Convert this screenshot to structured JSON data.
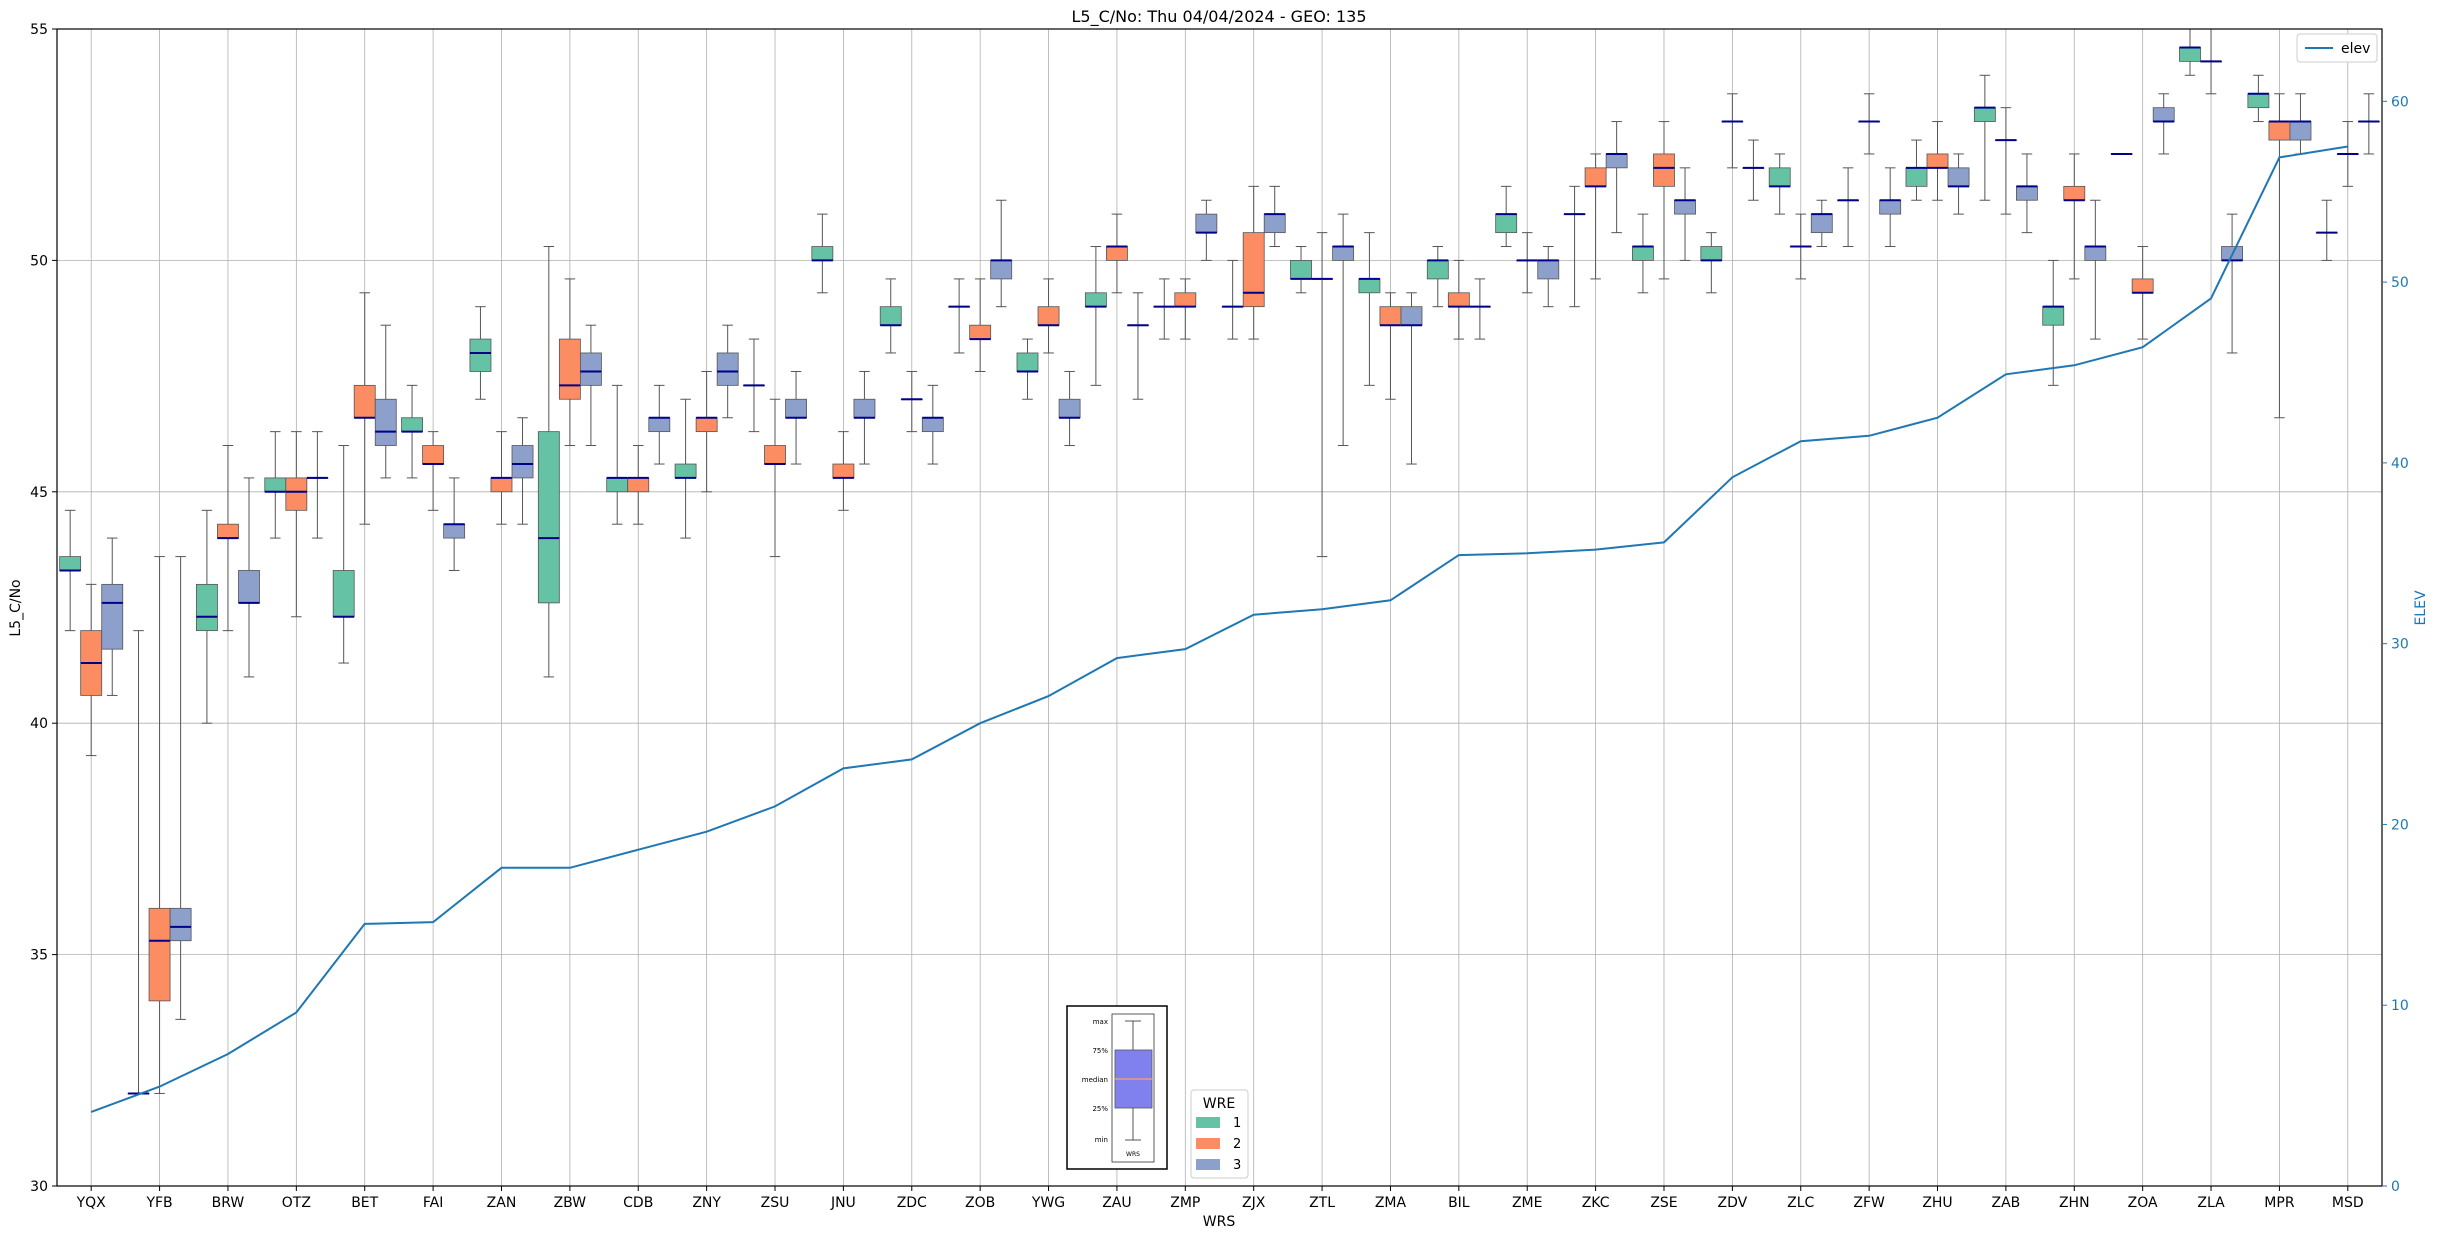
{
  "chart_data": {
    "type": "box",
    "title": "L5_C/No: Thu 04/04/2024 - GEO: 135",
    "xlabel": "WRS",
    "ylabel": "L5_C/No",
    "ylabel_right": "ELEV",
    "ylim": [
      30,
      55
    ],
    "ylim_right": [
      0,
      64
    ],
    "yticks": [
      30,
      35,
      40,
      45,
      50,
      55
    ],
    "yticks_right": [
      0,
      10,
      20,
      30,
      40,
      50,
      60
    ],
    "grid": true,
    "categories": [
      "YQX",
      "YFB",
      "BRW",
      "OTZ",
      "BET",
      "FAI",
      "ZAN",
      "ZBW",
      "CDB",
      "ZNY",
      "ZSU",
      "JNU",
      "ZDC",
      "ZOB",
      "YWG",
      "ZAU",
      "ZMP",
      "ZJX",
      "ZTL",
      "ZMA",
      "BIL",
      "ZME",
      "ZKC",
      "ZSE",
      "ZDV",
      "ZLC",
      "ZFW",
      "ZHU",
      "ZAB",
      "ZHN",
      "ZOA",
      "ZLA",
      "MPR",
      "MSD"
    ],
    "colors": {
      "1": "#66c2a5",
      "2": "#fc8d62",
      "3": "#8da0cb",
      "median": "#00008b",
      "whisker": "#555555",
      "elev": "#1f77b4",
      "right_axis": "#1f77b4"
    },
    "legend": {
      "title": "WRE",
      "placement": "bottom-center",
      "labels": [
        "1",
        "2",
        "3"
      ]
    },
    "elev_legend": {
      "label": "elev",
      "placement": "top-right"
    },
    "inset": {
      "labels": [
        "max",
        "75%",
        "median",
        "25%",
        "min"
      ],
      "xlabel": "WRS"
    },
    "elev": [
      4.1,
      5.5,
      7.3,
      9.6,
      14.5,
      14.6,
      17.6,
      17.6,
      18.6,
      19.6,
      21.0,
      23.1,
      23.6,
      25.6,
      27.1,
      29.2,
      29.7,
      31.6,
      31.9,
      32.4,
      34.9,
      35.0,
      35.2,
      35.6,
      39.2,
      41.2,
      41.5,
      42.5,
      44.9,
      45.4,
      46.4,
      49.1,
      56.9,
      57.5
    ],
    "boxes": [
      {
        "cat": "YQX",
        "wre": 1,
        "min": 42.0,
        "q1": 43.3,
        "median": 43.3,
        "q3": 43.6,
        "max": 44.6
      },
      {
        "cat": "YQX",
        "wre": 2,
        "min": 39.3,
        "q1": 40.6,
        "median": 41.3,
        "q3": 42.0,
        "max": 43.0
      },
      {
        "cat": "YQX",
        "wre": 3,
        "min": 40.6,
        "q1": 41.6,
        "median": 42.6,
        "q3": 43.0,
        "max": 44.0
      },
      {
        "cat": "YFB",
        "wre": 1,
        "min": 32.0,
        "q1": 32.0,
        "median": 32.0,
        "q3": 32.0,
        "max": 42.0
      },
      {
        "cat": "YFB",
        "wre": 2,
        "min": 32.0,
        "q1": 34.0,
        "median": 35.3,
        "q3": 36.0,
        "max": 43.6
      },
      {
        "cat": "YFB",
        "wre": 3,
        "min": 33.6,
        "q1": 35.3,
        "median": 35.6,
        "q3": 36.0,
        "max": 43.6
      },
      {
        "cat": "BRW",
        "wre": 1,
        "min": 40.0,
        "q1": 42.0,
        "median": 42.3,
        "q3": 43.0,
        "max": 44.6
      },
      {
        "cat": "BRW",
        "wre": 2,
        "min": 42.0,
        "q1": 44.0,
        "median": 44.0,
        "q3": 44.3,
        "max": 46.0
      },
      {
        "cat": "BRW",
        "wre": 3,
        "min": 41.0,
        "q1": 42.6,
        "median": 42.6,
        "q3": 43.3,
        "max": 45.3
      },
      {
        "cat": "OTZ",
        "wre": 1,
        "min": 44.0,
        "q1": 45.0,
        "median": 45.0,
        "q3": 45.3,
        "max": 46.3
      },
      {
        "cat": "OTZ",
        "wre": 2,
        "min": 42.3,
        "q1": 44.6,
        "median": 45.0,
        "q3": 45.3,
        "max": 46.3
      },
      {
        "cat": "OTZ",
        "wre": 3,
        "min": 44.0,
        "q1": 45.3,
        "median": 45.3,
        "q3": 45.3,
        "max": 46.3
      },
      {
        "cat": "BET",
        "wre": 1,
        "min": 41.3,
        "q1": 42.3,
        "median": 42.3,
        "q3": 43.3,
        "max": 46.0
      },
      {
        "cat": "BET",
        "wre": 2,
        "min": 44.3,
        "q1": 46.6,
        "median": 46.6,
        "q3": 47.3,
        "max": 49.3
      },
      {
        "cat": "BET",
        "wre": 3,
        "min": 45.3,
        "q1": 46.0,
        "median": 46.3,
        "q3": 47.0,
        "max": 48.6
      },
      {
        "cat": "FAI",
        "wre": 1,
        "min": 45.3,
        "q1": 46.3,
        "median": 46.3,
        "q3": 46.6,
        "max": 47.3
      },
      {
        "cat": "FAI",
        "wre": 2,
        "min": 44.6,
        "q1": 45.6,
        "median": 45.6,
        "q3": 46.0,
        "max": 46.3
      },
      {
        "cat": "FAI",
        "wre": 3,
        "min": 43.3,
        "q1": 44.0,
        "median": 44.3,
        "q3": 44.3,
        "max": 45.3
      },
      {
        "cat": "ZAN",
        "wre": 1,
        "min": 47.0,
        "q1": 47.6,
        "median": 48.0,
        "q3": 48.3,
        "max": 49.0
      },
      {
        "cat": "ZAN",
        "wre": 2,
        "min": 44.3,
        "q1": 45.0,
        "median": 45.3,
        "q3": 45.3,
        "max": 46.3
      },
      {
        "cat": "ZAN",
        "wre": 3,
        "min": 44.3,
        "q1": 45.3,
        "median": 45.6,
        "q3": 46.0,
        "max": 46.6
      },
      {
        "cat": "ZBW",
        "wre": 1,
        "min": 41.0,
        "q1": 42.6,
        "median": 44.0,
        "q3": 46.3,
        "max": 50.3
      },
      {
        "cat": "ZBW",
        "wre": 2,
        "min": 46.0,
        "q1": 47.0,
        "median": 47.3,
        "q3": 48.3,
        "max": 49.6
      },
      {
        "cat": "ZBW",
        "wre": 3,
        "min": 46.0,
        "q1": 47.3,
        "median": 47.6,
        "q3": 48.0,
        "max": 48.6
      },
      {
        "cat": "CDB",
        "wre": 1,
        "min": 44.3,
        "q1": 45.0,
        "median": 45.3,
        "q3": 45.3,
        "max": 47.3
      },
      {
        "cat": "CDB",
        "wre": 2,
        "min": 44.3,
        "q1": 45.0,
        "median": 45.3,
        "q3": 45.3,
        "max": 46.0
      },
      {
        "cat": "CDB",
        "wre": 3,
        "min": 45.6,
        "q1": 46.3,
        "median": 46.6,
        "q3": 46.6,
        "max": 47.3
      },
      {
        "cat": "ZNY",
        "wre": 1,
        "min": 44.0,
        "q1": 45.3,
        "median": 45.3,
        "q3": 45.6,
        "max": 47.0
      },
      {
        "cat": "ZNY",
        "wre": 2,
        "min": 45.0,
        "q1": 46.3,
        "median": 46.6,
        "q3": 46.6,
        "max": 47.6
      },
      {
        "cat": "ZNY",
        "wre": 3,
        "min": 46.6,
        "q1": 47.3,
        "median": 47.6,
        "q3": 48.0,
        "max": 48.6
      },
      {
        "cat": "ZSU",
        "wre": 1,
        "min": 46.3,
        "q1": 47.3,
        "median": 47.3,
        "q3": 47.3,
        "max": 48.3
      },
      {
        "cat": "ZSU",
        "wre": 2,
        "min": 43.6,
        "q1": 45.6,
        "median": 45.6,
        "q3": 46.0,
        "max": 47.0
      },
      {
        "cat": "ZSU",
        "wre": 3,
        "min": 45.6,
        "q1": 46.6,
        "median": 46.6,
        "q3": 47.0,
        "max": 47.6
      },
      {
        "cat": "JNU",
        "wre": 1,
        "min": 49.3,
        "q1": 50.0,
        "median": 50.0,
        "q3": 50.3,
        "max": 51.0
      },
      {
        "cat": "JNU",
        "wre": 2,
        "min": 44.6,
        "q1": 45.3,
        "median": 45.3,
        "q3": 45.6,
        "max": 46.3
      },
      {
        "cat": "JNU",
        "wre": 3,
        "min": 45.6,
        "q1": 46.6,
        "median": 46.6,
        "q3": 47.0,
        "max": 47.6
      },
      {
        "cat": "ZDC",
        "wre": 1,
        "min": 48.0,
        "q1": 48.6,
        "median": 48.6,
        "q3": 49.0,
        "max": 49.6
      },
      {
        "cat": "ZDC",
        "wre": 2,
        "min": 46.3,
        "q1": 47.0,
        "median": 47.0,
        "q3": 47.0,
        "max": 47.6
      },
      {
        "cat": "ZDC",
        "wre": 3,
        "min": 45.6,
        "q1": 46.3,
        "median": 46.6,
        "q3": 46.6,
        "max": 47.3
      },
      {
        "cat": "ZOB",
        "wre": 1,
        "min": 48.0,
        "q1": 49.0,
        "median": 49.0,
        "q3": 49.0,
        "max": 49.6
      },
      {
        "cat": "ZOB",
        "wre": 2,
        "min": 47.6,
        "q1": 48.3,
        "median": 48.3,
        "q3": 48.6,
        "max": 49.6
      },
      {
        "cat": "ZOB",
        "wre": 3,
        "min": 49.0,
        "q1": 49.6,
        "median": 50.0,
        "q3": 50.0,
        "max": 51.3
      },
      {
        "cat": "YWG",
        "wre": 1,
        "min": 47.0,
        "q1": 47.6,
        "median": 47.6,
        "q3": 48.0,
        "max": 48.3
      },
      {
        "cat": "YWG",
        "wre": 2,
        "min": 48.0,
        "q1": 48.6,
        "median": 48.6,
        "q3": 49.0,
        "max": 49.6
      },
      {
        "cat": "YWG",
        "wre": 3,
        "min": 46.0,
        "q1": 46.6,
        "median": 46.6,
        "q3": 47.0,
        "max": 47.6
      },
      {
        "cat": "ZAU",
        "wre": 1,
        "min": 47.3,
        "q1": 49.0,
        "median": 49.0,
        "q3": 49.3,
        "max": 50.3
      },
      {
        "cat": "ZAU",
        "wre": 2,
        "min": 49.3,
        "q1": 50.0,
        "median": 50.3,
        "q3": 50.3,
        "max": 51.0
      },
      {
        "cat": "ZAU",
        "wre": 3,
        "min": 47.0,
        "q1": 48.6,
        "median": 48.6,
        "q3": 48.6,
        "max": 49.3
      },
      {
        "cat": "ZMP",
        "wre": 1,
        "min": 48.3,
        "q1": 49.0,
        "median": 49.0,
        "q3": 49.0,
        "max": 49.6
      },
      {
        "cat": "ZMP",
        "wre": 2,
        "min": 48.3,
        "q1": 49.0,
        "median": 49.0,
        "q3": 49.3,
        "max": 49.6
      },
      {
        "cat": "ZMP",
        "wre": 3,
        "min": 50.0,
        "q1": 50.6,
        "median": 50.6,
        "q3": 51.0,
        "max": 51.3
      },
      {
        "cat": "ZJX",
        "wre": 1,
        "min": 48.3,
        "q1": 49.0,
        "median": 49.0,
        "q3": 49.0,
        "max": 50.0
      },
      {
        "cat": "ZJX",
        "wre": 2,
        "min": 48.3,
        "q1": 49.0,
        "median": 49.3,
        "q3": 50.6,
        "max": 51.6
      },
      {
        "cat": "ZJX",
        "wre": 3,
        "min": 50.3,
        "q1": 50.6,
        "median": 51.0,
        "q3": 51.0,
        "max": 51.6
      },
      {
        "cat": "ZTL",
        "wre": 1,
        "min": 49.3,
        "q1": 49.6,
        "median": 49.6,
        "q3": 50.0,
        "max": 50.3
      },
      {
        "cat": "ZTL",
        "wre": 2,
        "min": 43.6,
        "q1": 49.6,
        "median": 49.6,
        "q3": 49.6,
        "max": 50.6
      },
      {
        "cat": "ZTL",
        "wre": 3,
        "min": 46.0,
        "q1": 50.0,
        "median": 50.3,
        "q3": 50.3,
        "max": 51.0
      },
      {
        "cat": "ZMA",
        "wre": 1,
        "min": 47.3,
        "q1": 49.3,
        "median": 49.6,
        "q3": 49.6,
        "max": 50.6
      },
      {
        "cat": "ZMA",
        "wre": 2,
        "min": 47.0,
        "q1": 48.6,
        "median": 48.6,
        "q3": 49.0,
        "max": 49.3
      },
      {
        "cat": "ZMA",
        "wre": 3,
        "min": 45.6,
        "q1": 48.6,
        "median": 48.6,
        "q3": 49.0,
        "max": 49.3
      },
      {
        "cat": "BIL",
        "wre": 1,
        "min": 49.0,
        "q1": 49.6,
        "median": 50.0,
        "q3": 50.0,
        "max": 50.3
      },
      {
        "cat": "BIL",
        "wre": 2,
        "min": 48.3,
        "q1": 49.0,
        "median": 49.0,
        "q3": 49.3,
        "max": 50.0
      },
      {
        "cat": "BIL",
        "wre": 3,
        "min": 48.3,
        "q1": 49.0,
        "median": 49.0,
        "q3": 49.0,
        "max": 49.6
      },
      {
        "cat": "ZME",
        "wre": 1,
        "min": 50.3,
        "q1": 50.6,
        "median": 51.0,
        "q3": 51.0,
        "max": 51.6
      },
      {
        "cat": "ZME",
        "wre": 2,
        "min": 49.3,
        "q1": 50.0,
        "median": 50.0,
        "q3": 50.0,
        "max": 50.6
      },
      {
        "cat": "ZME",
        "wre": 3,
        "min": 49.0,
        "q1": 49.6,
        "median": 50.0,
        "q3": 50.0,
        "max": 50.3
      },
      {
        "cat": "ZKC",
        "wre": 1,
        "min": 49.0,
        "q1": 51.0,
        "median": 51.0,
        "q3": 51.0,
        "max": 51.6
      },
      {
        "cat": "ZKC",
        "wre": 2,
        "min": 49.6,
        "q1": 51.6,
        "median": 51.6,
        "q3": 52.0,
        "max": 52.3
      },
      {
        "cat": "ZKC",
        "wre": 3,
        "min": 50.6,
        "q1": 52.0,
        "median": 52.3,
        "q3": 52.3,
        "max": 53.0
      },
      {
        "cat": "ZSE",
        "wre": 1,
        "min": 49.3,
        "q1": 50.0,
        "median": 50.3,
        "q3": 50.3,
        "max": 51.0
      },
      {
        "cat": "ZSE",
        "wre": 2,
        "min": 49.6,
        "q1": 51.6,
        "median": 52.0,
        "q3": 52.3,
        "max": 53.0
      },
      {
        "cat": "ZSE",
        "wre": 3,
        "min": 50.0,
        "q1": 51.0,
        "median": 51.3,
        "q3": 51.3,
        "max": 52.0
      },
      {
        "cat": "ZDV",
        "wre": 1,
        "min": 49.3,
        "q1": 50.0,
        "median": 50.0,
        "q3": 50.3,
        "max": 50.6
      },
      {
        "cat": "ZDV",
        "wre": 2,
        "min": 52.0,
        "q1": 53.0,
        "median": 53.0,
        "q3": 53.0,
        "max": 53.6
      },
      {
        "cat": "ZDV",
        "wre": 3,
        "min": 51.3,
        "q1": 52.0,
        "median": 52.0,
        "q3": 52.0,
        "max": 52.6
      },
      {
        "cat": "ZLC",
        "wre": 1,
        "min": 51.0,
        "q1": 51.6,
        "median": 51.6,
        "q3": 52.0,
        "max": 52.3
      },
      {
        "cat": "ZLC",
        "wre": 2,
        "min": 49.6,
        "q1": 50.3,
        "median": 50.3,
        "q3": 50.3,
        "max": 51.0
      },
      {
        "cat": "ZLC",
        "wre": 3,
        "min": 50.3,
        "q1": 50.6,
        "median": 51.0,
        "q3": 51.0,
        "max": 51.3
      },
      {
        "cat": "ZFW",
        "wre": 1,
        "min": 50.3,
        "q1": 51.3,
        "median": 51.3,
        "q3": 51.3,
        "max": 52.0
      },
      {
        "cat": "ZFW",
        "wre": 2,
        "min": 52.3,
        "q1": 53.0,
        "median": 53.0,
        "q3": 53.0,
        "max": 53.6
      },
      {
        "cat": "ZFW",
        "wre": 3,
        "min": 50.3,
        "q1": 51.0,
        "median": 51.3,
        "q3": 51.3,
        "max": 52.0
      },
      {
        "cat": "ZHU",
        "wre": 1,
        "min": 51.3,
        "q1": 51.6,
        "median": 52.0,
        "q3": 52.0,
        "max": 52.6
      },
      {
        "cat": "ZHU",
        "wre": 2,
        "min": 51.3,
        "q1": 52.0,
        "median": 52.0,
        "q3": 52.3,
        "max": 53.0
      },
      {
        "cat": "ZHU",
        "wre": 3,
        "min": 51.0,
        "q1": 51.6,
        "median": 51.6,
        "q3": 52.0,
        "max": 52.3
      },
      {
        "cat": "ZAB",
        "wre": 1,
        "min": 51.3,
        "q1": 53.0,
        "median": 53.3,
        "q3": 53.3,
        "max": 54.0
      },
      {
        "cat": "ZAB",
        "wre": 2,
        "min": 51.0,
        "q1": 52.6,
        "median": 52.6,
        "q3": 52.6,
        "max": 53.3
      },
      {
        "cat": "ZAB",
        "wre": 3,
        "min": 50.6,
        "q1": 51.3,
        "median": 51.6,
        "q3": 51.6,
        "max": 52.3
      },
      {
        "cat": "ZHN",
        "wre": 1,
        "min": 47.3,
        "q1": 48.6,
        "median": 49.0,
        "q3": 49.0,
        "max": 50.0
      },
      {
        "cat": "ZHN",
        "wre": 2,
        "min": 49.6,
        "q1": 51.3,
        "median": 51.3,
        "q3": 51.6,
        "max": 52.3
      },
      {
        "cat": "ZHN",
        "wre": 3,
        "min": 48.3,
        "q1": 50.0,
        "median": 50.3,
        "q3": 50.3,
        "max": 51.3
      },
      {
        "cat": "ZOA",
        "wre": 1,
        "min": 52.3,
        "q1": 52.3,
        "median": 52.3,
        "q3": 52.3,
        "max": 52.3
      },
      {
        "cat": "ZOA",
        "wre": 2,
        "min": 48.3,
        "q1": 49.3,
        "median": 49.3,
        "q3": 49.6,
        "max": 50.3
      },
      {
        "cat": "ZOA",
        "wre": 3,
        "min": 52.3,
        "q1": 53.0,
        "median": 53.0,
        "q3": 53.3,
        "max": 53.6
      },
      {
        "cat": "ZLA",
        "wre": 1,
        "min": 54.0,
        "q1": 54.3,
        "median": 54.6,
        "q3": 54.6,
        "max": 55.0
      },
      {
        "cat": "ZLA",
        "wre": 2,
        "min": 53.6,
        "q1": 54.3,
        "median": 54.3,
        "q3": 54.3,
        "max": 55.0
      },
      {
        "cat": "ZLA",
        "wre": 3,
        "min": 48.0,
        "q1": 50.0,
        "median": 50.0,
        "q3": 50.3,
        "max": 51.0
      },
      {
        "cat": "MPR",
        "wre": 1,
        "min": 53.0,
        "q1": 53.3,
        "median": 53.6,
        "q3": 53.6,
        "max": 54.0
      },
      {
        "cat": "MPR",
        "wre": 2,
        "min": 46.6,
        "q1": 52.6,
        "median": 53.0,
        "q3": 53.0,
        "max": 53.6
      },
      {
        "cat": "MPR",
        "wre": 3,
        "min": 52.3,
        "q1": 52.6,
        "median": 53.0,
        "q3": 53.0,
        "max": 53.6
      },
      {
        "cat": "MSD",
        "wre": 1,
        "min": 50.0,
        "q1": 50.6,
        "median": 50.6,
        "q3": 50.6,
        "max": 51.3
      },
      {
        "cat": "MSD",
        "wre": 2,
        "min": 51.6,
        "q1": 52.3,
        "median": 52.3,
        "q3": 52.3,
        "max": 53.0
      },
      {
        "cat": "MSD",
        "wre": 3,
        "min": 52.3,
        "q1": 53.0,
        "median": 53.0,
        "q3": 53.0,
        "max": 53.6
      }
    ]
  }
}
